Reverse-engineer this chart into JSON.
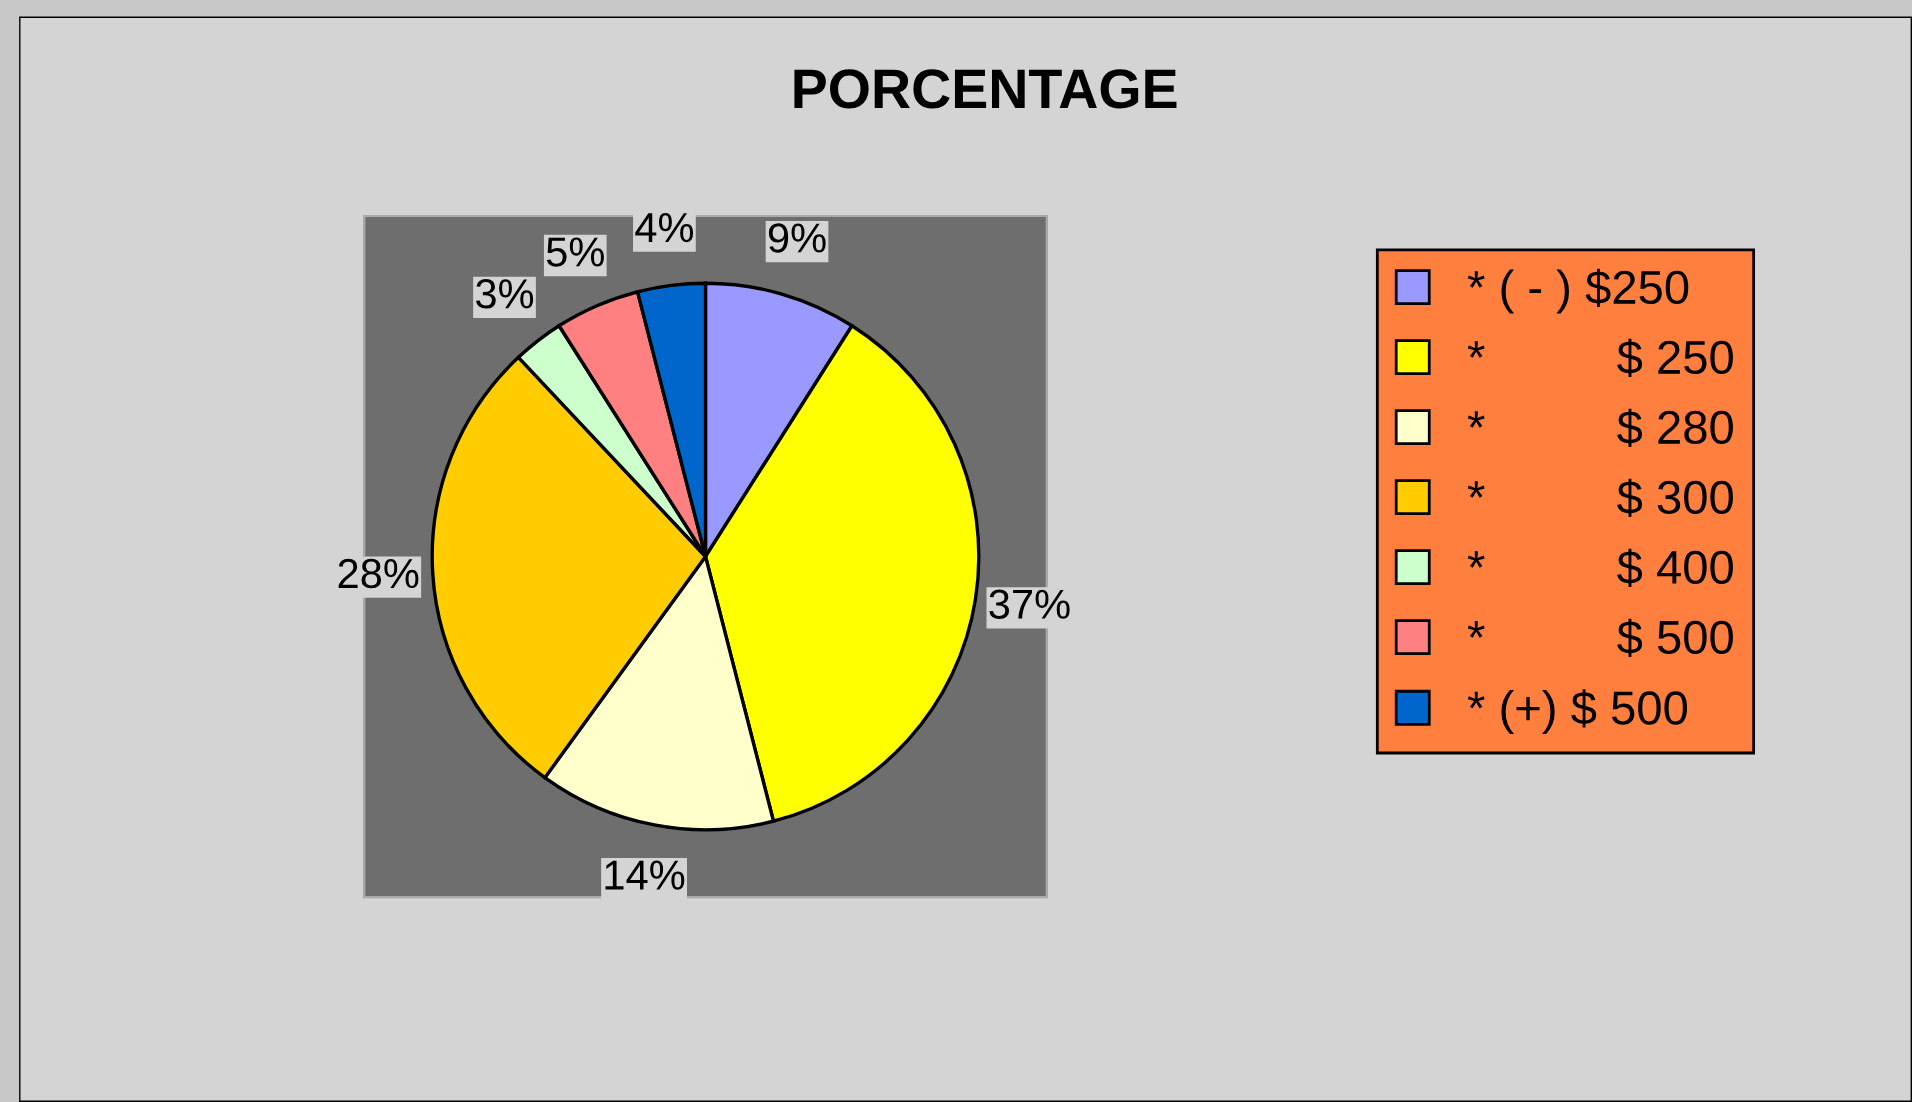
{
  "chart_data": {
    "type": "pie",
    "title": "PORCENTAGE",
    "categories": [
      "* ( - ) $250",
      "*          $ 250",
      "*          $ 280",
      "*          $ 300",
      "*          $ 400",
      "*          $ 500",
      "* (+) $ 500"
    ],
    "values": [
      9,
      37,
      14,
      28,
      3,
      5,
      4
    ],
    "value_labels": [
      "9%",
      "37%",
      "14%",
      "28%",
      "3%",
      "5%",
      "4%"
    ],
    "colors": [
      "#9999ff",
      "#ffff00",
      "#ffffcc",
      "#ffcc00",
      "#ccffcc",
      "#ff8080",
      "#0066cc"
    ],
    "legend": "right"
  }
}
